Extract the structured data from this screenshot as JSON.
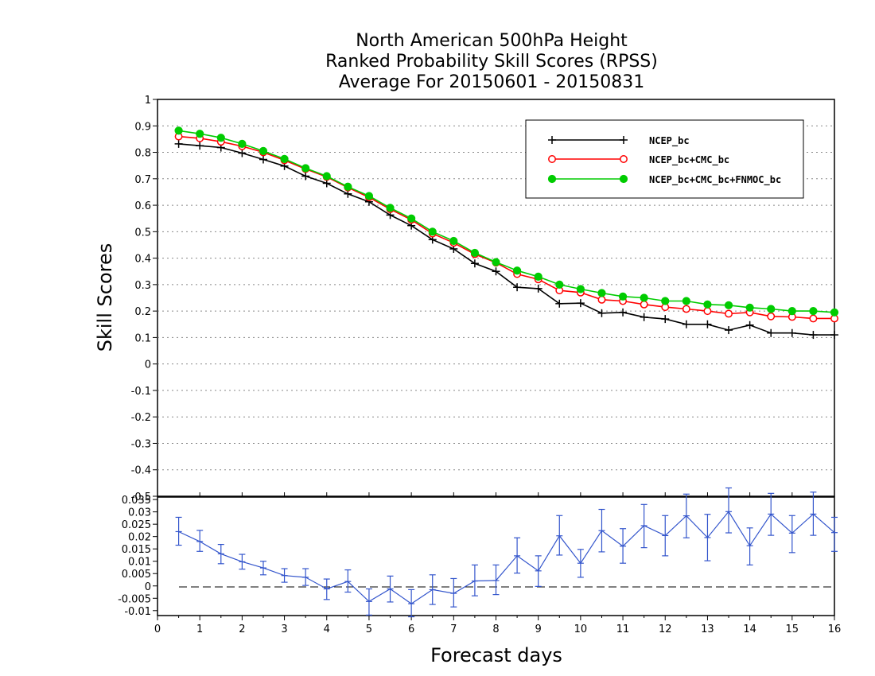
{
  "chart_data": [
    {
      "type": "line",
      "title": [
        "North American 500hPa Height",
        "Ranked Probability Skill Scores (RPSS)",
        "Average For 20150601 - 20150831"
      ],
      "ylabel": "Skill Scores",
      "xlabel": "Forecast days",
      "ylim": [
        -0.5,
        1
      ],
      "xlim": [
        0,
        16
      ],
      "grid": true,
      "legend_placement": "top-right",
      "y_ticks": [
        "-0.5",
        "-0.4",
        "-0.3",
        "-0.2",
        "-0.1",
        "0",
        "0.1",
        "0.2",
        "0.3",
        "0.4",
        "0.5",
        "0.6",
        "0.7",
        "0.8",
        "0.9",
        "1"
      ],
      "x": [
        0.5,
        1,
        1.5,
        2,
        2.5,
        3,
        3.5,
        4,
        4.5,
        5,
        5.5,
        6,
        6.5,
        7,
        7.5,
        8,
        8.5,
        9,
        9.5,
        10,
        10.5,
        11,
        11.5,
        12,
        12.5,
        13,
        13.5,
        14,
        14.5,
        15,
        15.5,
        16
      ],
      "series": [
        {
          "name": "NCEP_bc",
          "color": "#000000",
          "marker": "plus",
          "values": [
            0.832,
            0.825,
            0.818,
            0.797,
            0.773,
            0.748,
            0.71,
            0.683,
            0.643,
            0.613,
            0.563,
            0.523,
            0.47,
            0.435,
            0.38,
            0.35,
            0.29,
            0.285,
            0.228,
            0.23,
            0.192,
            0.195,
            0.177,
            0.17,
            0.15,
            0.15,
            0.128,
            0.147,
            0.117,
            0.117,
            0.11,
            0.11
          ]
        },
        {
          "name": "NCEP_bc+CMC_bc",
          "color": "#ff0000",
          "marker": "open-circle",
          "values": [
            0.86,
            0.853,
            0.84,
            0.823,
            0.8,
            0.77,
            0.737,
            0.707,
            0.667,
            0.63,
            0.585,
            0.545,
            0.493,
            0.458,
            0.415,
            0.383,
            0.34,
            0.32,
            0.278,
            0.27,
            0.243,
            0.238,
            0.225,
            0.215,
            0.208,
            0.2,
            0.19,
            0.195,
            0.18,
            0.178,
            0.172,
            0.172
          ]
        },
        {
          "name": "NCEP_bc+CMC_bc+FNMOC_bc",
          "color": "#00cc00",
          "marker": "filled-circle",
          "values": [
            0.882,
            0.87,
            0.855,
            0.832,
            0.805,
            0.775,
            0.74,
            0.71,
            0.67,
            0.635,
            0.59,
            0.55,
            0.5,
            0.465,
            0.42,
            0.385,
            0.353,
            0.33,
            0.3,
            0.283,
            0.268,
            0.255,
            0.25,
            0.238,
            0.238,
            0.225,
            0.222,
            0.213,
            0.208,
            0.2,
            0.2,
            0.195
          ]
        }
      ]
    },
    {
      "type": "line",
      "xlabel": "Forecast days",
      "ylim": [
        -0.012,
        0.036
      ],
      "xlim": [
        0,
        16
      ],
      "x_ticks": [
        "0",
        "1",
        "2",
        "3",
        "4",
        "5",
        "6",
        "7",
        "8",
        "9",
        "10",
        "11",
        "12",
        "13",
        "14",
        "15",
        "16"
      ],
      "y_ticks": [
        "-0.01",
        "-0.005",
        "0",
        "0.005",
        "0.01",
        "0.015",
        "0.02",
        "0.025",
        "0.03",
        "0.035"
      ],
      "error_bars": true,
      "zero_line": "dashed",
      "x": [
        0.5,
        1,
        1.5,
        2,
        2.5,
        3,
        3.5,
        4,
        4.5,
        5,
        5.5,
        6,
        6.5,
        7,
        7.5,
        8,
        8.5,
        9,
        9.5,
        10,
        10.5,
        11,
        11.5,
        12,
        12.5,
        13,
        13.5,
        14,
        14.5,
        15,
        15.5,
        16
      ],
      "series": [
        {
          "color": "#3355cc",
          "values": [
            0.022,
            0.018,
            0.013,
            0.0098,
            0.0073,
            0.0042,
            0.0035,
            -0.0012,
            0.0018,
            -0.0063,
            -0.0012,
            -0.0072,
            -0.0015,
            -0.003,
            0.002,
            0.0022,
            0.0122,
            0.0061,
            0.0203,
            0.0092,
            0.0224,
            0.0161,
            0.0244,
            0.0204,
            0.0284,
            0.0196,
            0.0301,
            0.0163,
            0.0291,
            0.0214,
            0.0291,
            0.0216
          ],
          "err_low": [
            0.0165,
            0.014,
            0.009,
            0.0068,
            0.0045,
            0.0015,
            0.0002,
            -0.0055,
            -0.0025,
            -0.0118,
            -0.0065,
            -0.0125,
            -0.0075,
            -0.0085,
            -0.004,
            -0.0035,
            0.0052,
            -0.0002,
            0.0125,
            0.0035,
            0.0138,
            0.0092,
            0.0155,
            0.0122,
            0.0195,
            0.0102,
            0.0215,
            0.0085,
            0.0205,
            0.0135,
            0.0205,
            0.014
          ],
          "err_high": [
            0.0278,
            0.0225,
            0.0168,
            0.0128,
            0.01,
            0.007,
            0.007,
            0.0028,
            0.0065,
            -0.0012,
            0.004,
            -0.0015,
            0.0045,
            0.003,
            0.0085,
            0.0085,
            0.0195,
            0.0122,
            0.0285,
            0.0148,
            0.031,
            0.0232,
            0.033,
            0.0285,
            0.0372,
            0.029,
            0.0397,
            0.0235,
            0.0375,
            0.0285,
            0.038,
            0.0278
          ]
        }
      ]
    }
  ]
}
